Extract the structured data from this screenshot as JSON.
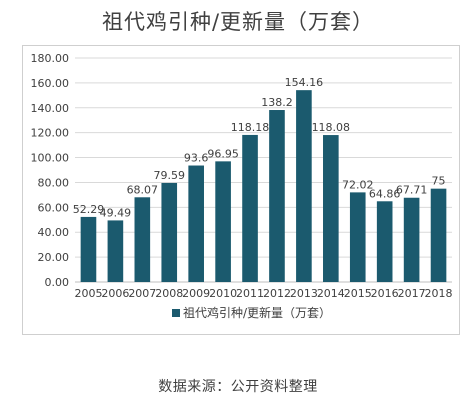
{
  "title": "祖代鸡引种/更新量（万套）",
  "source": "数据来源：公开资料整理",
  "colors": {
    "bar": "#1b5a6e",
    "grid": "#d9d9d9",
    "axis_text": "#404040"
  },
  "chart_data": {
    "type": "bar",
    "title": "祖代鸡引种/更新量（万套）",
    "categories": [
      "2005",
      "2006",
      "2007",
      "2008",
      "2009",
      "2010",
      "2011",
      "2012",
      "2013",
      "2014",
      "2015",
      "2016",
      "2017",
      "2018"
    ],
    "series": [
      {
        "name": "祖代鸡引种/更新量（万套）",
        "values": [
          52.29,
          49.49,
          68.07,
          79.59,
          93.6,
          96.95,
          118.18,
          138.2,
          154.16,
          118.08,
          72.02,
          64.86,
          67.71,
          75
        ]
      }
    ],
    "data_labels": [
      "52.29",
      "49.49",
      "68.07",
      "79.59",
      "93.6",
      "96.95",
      "118.18",
      "138.2",
      "154.16",
      "118.08",
      "72.02",
      "64.86",
      "67.71",
      "75"
    ],
    "ylim": [
      0,
      180
    ],
    "yticks": [
      "0.00",
      "20.00",
      "40.00",
      "60.00",
      "80.00",
      "100.00",
      "120.00",
      "140.00",
      "160.00",
      "180.00"
    ],
    "grid": true,
    "legend": "bottom"
  }
}
